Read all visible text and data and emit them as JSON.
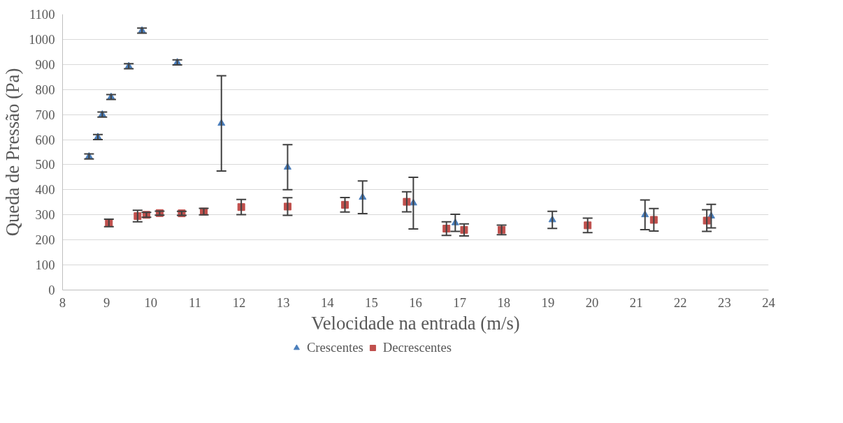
{
  "chart_data": {
    "type": "scatter",
    "xlabel": "Velocidade na entrada (m/s)",
    "ylabel": "Queda de Pressão (Pa)",
    "xlim": [
      8,
      24
    ],
    "xticks": [
      8,
      9,
      10,
      11,
      12,
      13,
      14,
      15,
      16,
      17,
      18,
      19,
      20,
      21,
      22,
      23,
      24
    ],
    "ylim": [
      0,
      1100
    ],
    "yticks": [
      0,
      100,
      200,
      300,
      400,
      500,
      600,
      700,
      800,
      900,
      1000,
      1100
    ],
    "grid": "y",
    "legend": "bottom",
    "series": [
      {
        "name": "Crescentes",
        "color": "#4a7ebb",
        "marker": "triangle",
        "x": [
          8.6,
          8.8,
          8.9,
          9.1,
          9.5,
          9.8,
          10.6,
          11.6,
          13.1,
          14.8,
          15.95,
          16.9,
          19.1,
          21.2,
          22.7
        ],
        "values": [
          533,
          610,
          700,
          770,
          893,
          1035,
          908,
          665,
          490,
          370,
          347,
          268,
          280,
          300,
          295
        ],
        "errors": [
          10,
          10,
          10,
          10,
          10,
          10,
          10,
          190,
          90,
          65,
          103,
          34,
          34,
          59,
          47
        ]
      },
      {
        "name": "Decrescentes",
        "color": "#c0504d",
        "marker": "square",
        "x": [
          9.05,
          9.7,
          9.9,
          10.2,
          10.7,
          11.2,
          12.05,
          13.1,
          14.4,
          15.8,
          16.7,
          17.1,
          17.95,
          19.9,
          21.4,
          22.6
        ],
        "values": [
          268,
          295,
          300,
          307,
          306,
          313,
          331,
          333,
          340,
          352,
          245,
          240,
          240,
          258,
          280,
          277
        ],
        "errors": [
          15,
          23,
          10,
          8,
          8,
          13,
          30,
          35,
          29,
          40,
          27,
          24,
          19,
          29,
          45,
          43
        ]
      }
    ]
  }
}
